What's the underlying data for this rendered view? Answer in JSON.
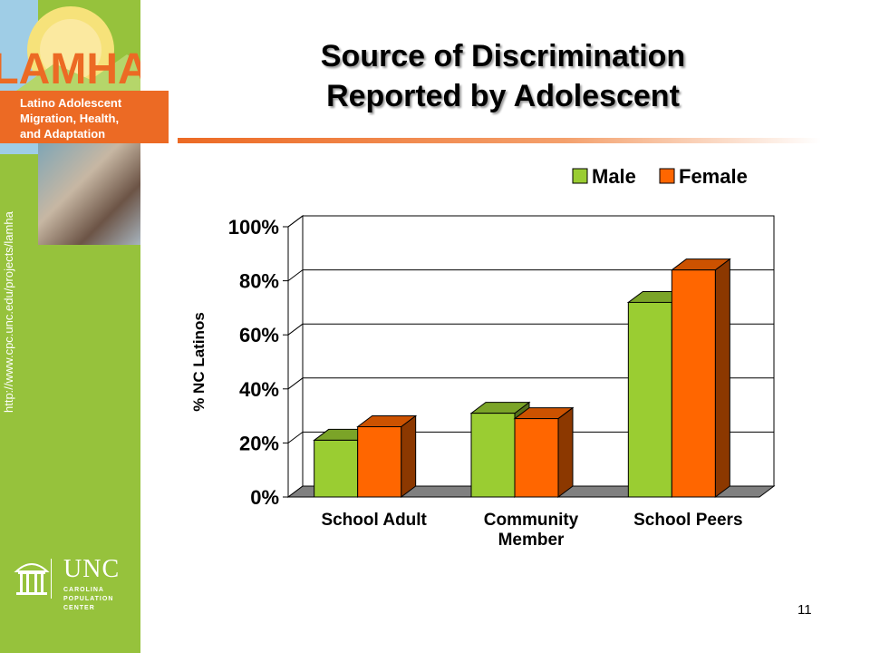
{
  "title": "Source of Discrimination Reported by Adolescent",
  "title_lines": [
    "Source of Discrimination",
    "Reported by Adolescent"
  ],
  "logo": {
    "acronym": "LAMHA",
    "lines": [
      "Latino Adolescent",
      "Migration, Health,",
      "and Adaptation"
    ]
  },
  "url": "http://www.cpc.unc.edu/projects/lamha",
  "unc": {
    "name": "UNC",
    "subtitle": "CAROLINA\nPOPULATION\nCENTER"
  },
  "page_number": "11",
  "colors": {
    "male": "#9acd32",
    "female": "#ff6600",
    "sidebar": "#96c23c",
    "accent": "#ec6a24"
  },
  "chart_data": {
    "type": "bar",
    "ylabel": "% NC Latinos",
    "ylim": [
      0,
      100
    ],
    "yticks": [
      "0%",
      "20%",
      "40%",
      "60%",
      "80%",
      "100%"
    ],
    "categories": [
      [
        "School Adult"
      ],
      [
        "Community",
        "Member"
      ],
      [
        "School Peers"
      ]
    ],
    "series": [
      {
        "name": "Male",
        "color": "#9acd32",
        "values": [
          21,
          31,
          72
        ]
      },
      {
        "name": "Female",
        "color": "#ff6600",
        "values": [
          26,
          29,
          84
        ]
      }
    ],
    "legend": "top-right",
    "grid": true
  }
}
